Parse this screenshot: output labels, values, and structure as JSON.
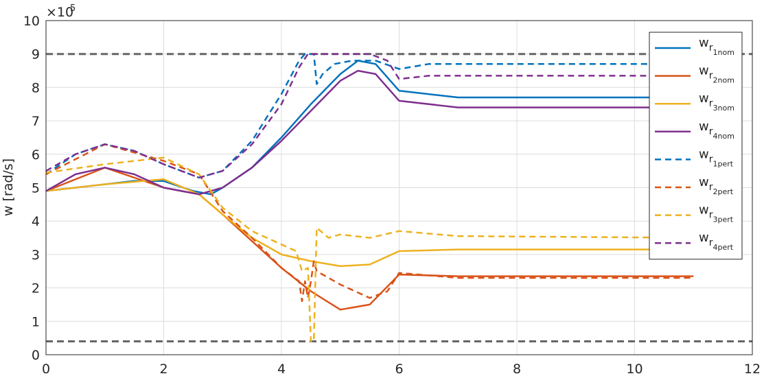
{
  "chart_data": {
    "type": "line",
    "title": "",
    "xlabel": "",
    "ylabel": "w [rad/s]",
    "exponent_label": "×10",
    "exponent_power": "5",
    "xlim": [
      0,
      12
    ],
    "ylim": [
      0,
      10
    ],
    "xticks": [
      0,
      2,
      4,
      6,
      8,
      10,
      12
    ],
    "yticks": [
      0,
      1,
      2,
      3,
      4,
      5,
      6,
      7,
      8,
      9,
      10
    ],
    "grid": true,
    "legend_position": "top-right",
    "reference_lines": [
      {
        "y": 9.0,
        "color": "#666666",
        "style": "dashed"
      },
      {
        "y": 0.4,
        "color": "#666666",
        "style": "dashed"
      }
    ],
    "series": [
      {
        "base": "w",
        "sub": "r",
        "subsub": "1nom",
        "color": "#0072BD",
        "dash": false,
        "points": [
          [
            0,
            4.9
          ],
          [
            0.5,
            5.0
          ],
          [
            1,
            5.1
          ],
          [
            1.5,
            5.2
          ],
          [
            2,
            5.2
          ],
          [
            2.5,
            4.9
          ],
          [
            2.8,
            4.8
          ],
          [
            3,
            5.0
          ],
          [
            3.5,
            5.6
          ],
          [
            4,
            6.5
          ],
          [
            4.5,
            7.5
          ],
          [
            5,
            8.4
          ],
          [
            5.3,
            8.8
          ],
          [
            5.6,
            8.7
          ],
          [
            6,
            7.9
          ],
          [
            7,
            7.7
          ],
          [
            11,
            7.7
          ]
        ]
      },
      {
        "base": "w",
        "sub": "r",
        "subsub": "2nom",
        "color": "#D95319",
        "dash": false,
        "points": [
          [
            0,
            4.9
          ],
          [
            1,
            5.6
          ],
          [
            2,
            5.0
          ],
          [
            2.6,
            4.8
          ],
          [
            3,
            4.2
          ],
          [
            3.5,
            3.4
          ],
          [
            4,
            2.6
          ],
          [
            4.5,
            1.9
          ],
          [
            5,
            1.35
          ],
          [
            5.5,
            1.5
          ],
          [
            6,
            2.4
          ],
          [
            7,
            2.35
          ],
          [
            11,
            2.35
          ]
        ]
      },
      {
        "base": "w",
        "sub": "r",
        "subsub": "3nom",
        "color": "#EDB120",
        "dash": false,
        "points": [
          [
            0,
            4.9
          ],
          [
            1,
            5.1
          ],
          [
            2,
            5.25
          ],
          [
            2.6,
            4.8
          ],
          [
            3,
            4.2
          ],
          [
            3.5,
            3.5
          ],
          [
            4,
            3.0
          ],
          [
            4.5,
            2.8
          ],
          [
            5,
            2.65
          ],
          [
            5.5,
            2.7
          ],
          [
            6,
            3.1
          ],
          [
            7,
            3.15
          ],
          [
            11,
            3.15
          ]
        ]
      },
      {
        "base": "w",
        "sub": "r",
        "subsub": "4nom",
        "color": "#7E2F8E",
        "dash": false,
        "points": [
          [
            0,
            4.9
          ],
          [
            0.5,
            5.4
          ],
          [
            1,
            5.6
          ],
          [
            1.5,
            5.4
          ],
          [
            2,
            5.0
          ],
          [
            2.6,
            4.8
          ],
          [
            3,
            5.0
          ],
          [
            3.5,
            5.6
          ],
          [
            4,
            6.4
          ],
          [
            4.5,
            7.3
          ],
          [
            5,
            8.2
          ],
          [
            5.3,
            8.5
          ],
          [
            5.6,
            8.4
          ],
          [
            6,
            7.6
          ],
          [
            7,
            7.4
          ],
          [
            11,
            7.4
          ]
        ]
      },
      {
        "base": "w",
        "sub": "r",
        "subsub": "1pert",
        "color": "#0072BD",
        "dash": true,
        "points": [
          [
            0,
            5.4
          ],
          [
            0.5,
            6.0
          ],
          [
            1,
            6.3
          ],
          [
            1.5,
            6.1
          ],
          [
            2,
            5.7
          ],
          [
            2.6,
            5.3
          ],
          [
            3,
            5.5
          ],
          [
            3.5,
            6.4
          ],
          [
            4,
            7.8
          ],
          [
            4.3,
            8.8
          ],
          [
            4.4,
            9.0
          ],
          [
            4.55,
            9.0
          ],
          [
            4.6,
            8.1
          ],
          [
            4.7,
            8.4
          ],
          [
            4.9,
            8.7
          ],
          [
            5.2,
            8.8
          ],
          [
            5.6,
            8.8
          ],
          [
            6,
            8.55
          ],
          [
            6.5,
            8.7
          ],
          [
            11,
            8.7
          ]
        ]
      },
      {
        "base": "w",
        "sub": "r",
        "subsub": "2pert",
        "color": "#D95319",
        "dash": true,
        "points": [
          [
            0,
            5.4
          ],
          [
            1,
            6.3
          ],
          [
            2,
            5.8
          ],
          [
            2.6,
            5.4
          ],
          [
            3,
            4.3
          ],
          [
            3.5,
            3.5
          ],
          [
            4,
            2.6
          ],
          [
            4.3,
            2.2
          ],
          [
            4.35,
            1.6
          ],
          [
            4.4,
            2.2
          ],
          [
            4.45,
            1.7
          ],
          [
            4.5,
            2.2
          ],
          [
            4.55,
            2.8
          ],
          [
            4.6,
            2.5
          ],
          [
            4.7,
            2.4
          ],
          [
            5,
            2.1
          ],
          [
            5.5,
            1.7
          ],
          [
            5.8,
            1.9
          ],
          [
            6,
            2.45
          ],
          [
            7,
            2.3
          ],
          [
            11,
            2.3
          ]
        ]
      },
      {
        "base": "w",
        "sub": "r",
        "subsub": "3pert",
        "color": "#EDB120",
        "dash": true,
        "points": [
          [
            0,
            5.45
          ],
          [
            1,
            5.7
          ],
          [
            2,
            5.9
          ],
          [
            2.6,
            5.4
          ],
          [
            3,
            4.4
          ],
          [
            3.5,
            3.7
          ],
          [
            4,
            3.3
          ],
          [
            4.25,
            3.1
          ],
          [
            4.35,
            2.5
          ],
          [
            4.45,
            2.6
          ],
          [
            4.5,
            0.4
          ],
          [
            4.55,
            0.4
          ],
          [
            4.6,
            3.8
          ],
          [
            4.8,
            3.5
          ],
          [
            5,
            3.6
          ],
          [
            5.5,
            3.5
          ],
          [
            6,
            3.7
          ],
          [
            7,
            3.55
          ],
          [
            11,
            3.5
          ]
        ]
      },
      {
        "base": "w",
        "sub": "r",
        "subsub": "4pert",
        "color": "#7E2F8E",
        "dash": true,
        "points": [
          [
            0,
            5.5
          ],
          [
            0.5,
            6.0
          ],
          [
            1,
            6.3
          ],
          [
            1.5,
            6.1
          ],
          [
            2,
            5.7
          ],
          [
            2.6,
            5.3
          ],
          [
            3,
            5.5
          ],
          [
            3.5,
            6.3
          ],
          [
            4,
            7.5
          ],
          [
            4.3,
            8.6
          ],
          [
            4.45,
            9.0
          ],
          [
            4.7,
            9.0
          ],
          [
            5,
            9.0
          ],
          [
            5.5,
            9.0
          ],
          [
            5.8,
            8.8
          ],
          [
            6,
            8.25
          ],
          [
            6.5,
            8.35
          ],
          [
            11,
            8.35
          ]
        ]
      }
    ]
  }
}
